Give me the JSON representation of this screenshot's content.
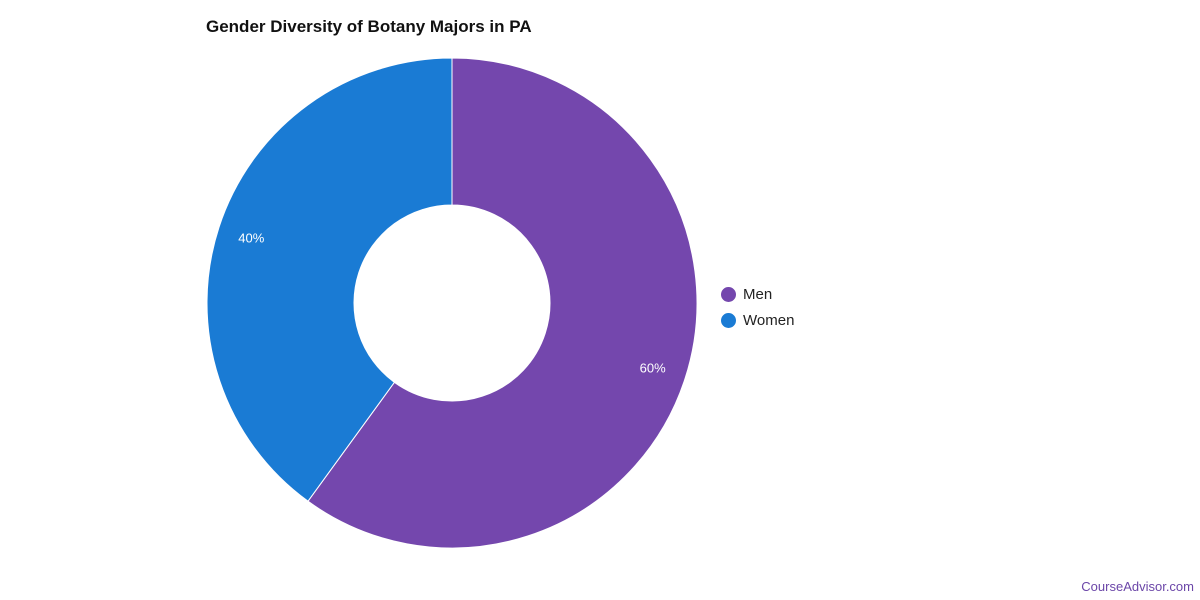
{
  "chart_data": {
    "type": "pie",
    "title": "Gender Diversity of Botany Majors in PA",
    "donut": true,
    "legend_position": "right",
    "series": [
      {
        "name": "Men",
        "value": 60,
        "label": "60%",
        "color": "#7447ad"
      },
      {
        "name": "Women",
        "value": 40,
        "label": "40%",
        "color": "#1a7bd4"
      }
    ]
  },
  "watermark": "CourseAdvisor.com"
}
